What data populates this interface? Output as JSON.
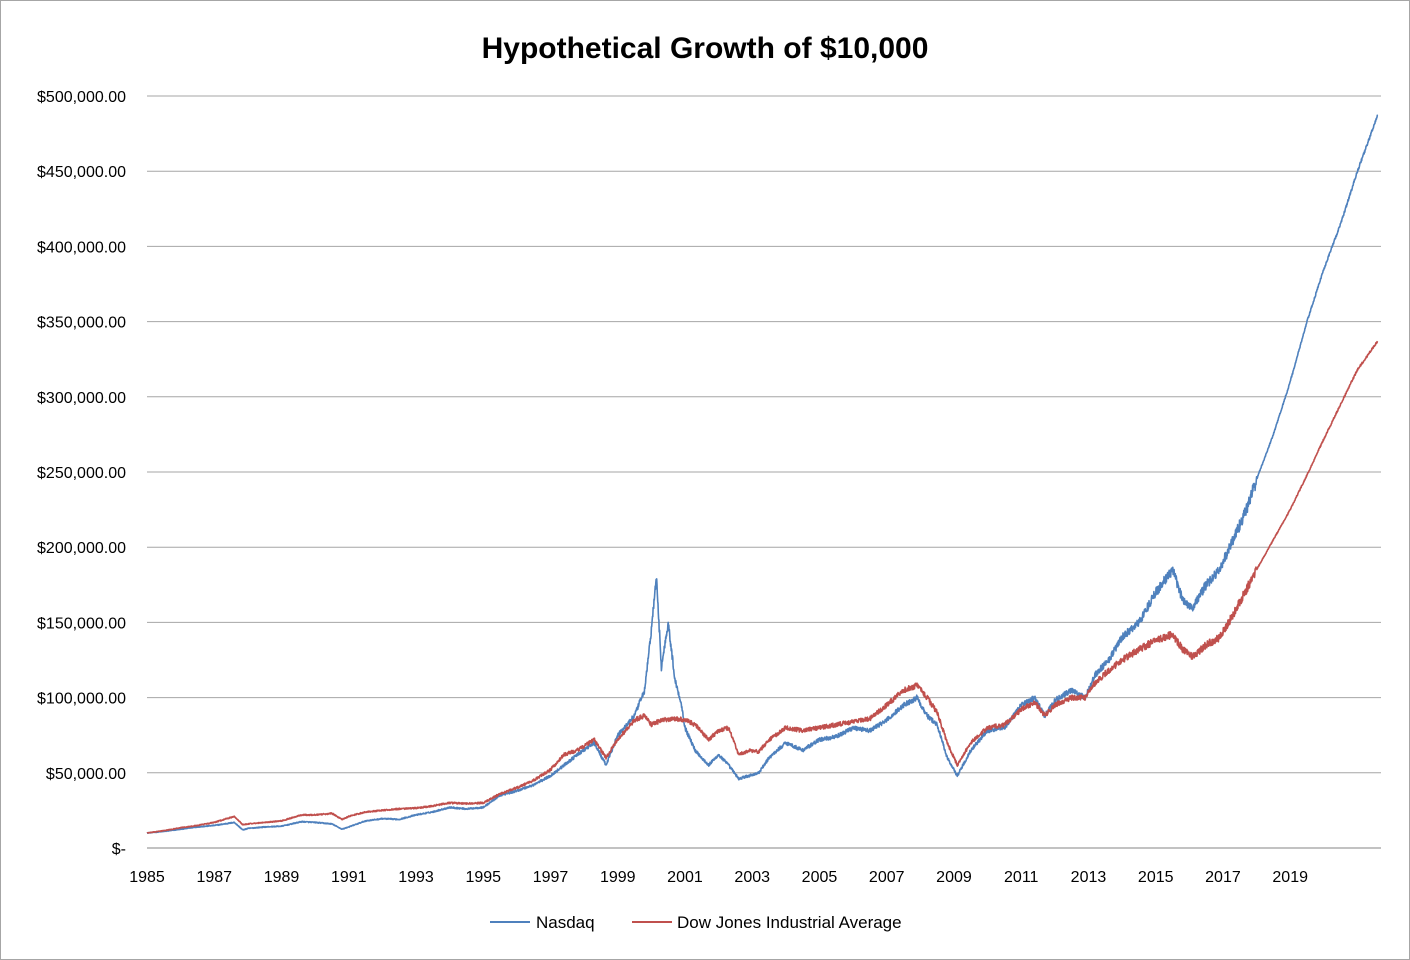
{
  "chart_data": {
    "type": "line",
    "title": "Hypothetical Growth of $10,000",
    "xlabel": "",
    "ylabel": "",
    "xlim": [
      1985.0,
      2021.7
    ],
    "ylim": [
      0,
      500000
    ],
    "grid": "horizontal",
    "legend_position": "bottom",
    "x_tick_labels": [
      "1985",
      "1987",
      "1989",
      "1991",
      "1993",
      "1995",
      "1997",
      "1999",
      "2001",
      "2003",
      "2005",
      "2007",
      "2009",
      "2011",
      "2013",
      "2015",
      "2017",
      "2019"
    ],
    "x_tick_values": [
      1985,
      1987,
      1989,
      1991,
      1993,
      1995,
      1997,
      1999,
      2001,
      2003,
      2005,
      2007,
      2009,
      2011,
      2013,
      2015,
      2017,
      2019
    ],
    "y_tick_labels": [
      "$-",
      "$50,000.00",
      "$100,000.00",
      "$150,000.00",
      "$200,000.00",
      "$250,000.00",
      "$300,000.00",
      "$350,000.00",
      "$400,000.00",
      "$450,000.00",
      "$500,000.00"
    ],
    "y_tick_values": [
      0,
      50000,
      100000,
      150000,
      200000,
      250000,
      300000,
      350000,
      400000,
      450000,
      500000
    ],
    "series": [
      {
        "name": "Nasdaq",
        "color": "#4f81bd",
        "points": [
          [
            1985.0,
            10000
          ],
          [
            1985.5,
            11000
          ],
          [
            1986.0,
            12500
          ],
          [
            1986.5,
            14000
          ],
          [
            1987.0,
            15000
          ],
          [
            1987.6,
            17000
          ],
          [
            1987.85,
            12000
          ],
          [
            1988.0,
            13000
          ],
          [
            1988.5,
            14000
          ],
          [
            1989.0,
            14500
          ],
          [
            1989.6,
            17500
          ],
          [
            1990.0,
            17000
          ],
          [
            1990.5,
            16000
          ],
          [
            1990.8,
            12500
          ],
          [
            1991.0,
            14000
          ],
          [
            1991.5,
            18000
          ],
          [
            1992.0,
            19500
          ],
          [
            1992.5,
            19000
          ],
          [
            1993.0,
            22000
          ],
          [
            1993.5,
            24000
          ],
          [
            1994.0,
            27000
          ],
          [
            1994.5,
            26000
          ],
          [
            1995.0,
            27000
          ],
          [
            1995.5,
            35000
          ],
          [
            1996.0,
            38000
          ],
          [
            1996.5,
            42000
          ],
          [
            1997.0,
            48000
          ],
          [
            1997.4,
            55000
          ],
          [
            1997.8,
            62000
          ],
          [
            1998.3,
            70000
          ],
          [
            1998.65,
            55000
          ],
          [
            1999.0,
            75000
          ],
          [
            1999.5,
            88000
          ],
          [
            1999.8,
            105000
          ],
          [
            2000.0,
            145000
          ],
          [
            2000.15,
            180000
          ],
          [
            2000.3,
            120000
          ],
          [
            2000.5,
            150000
          ],
          [
            2000.7,
            112000
          ],
          [
            2000.9,
            95000
          ],
          [
            2001.0,
            80000
          ],
          [
            2001.3,
            65000
          ],
          [
            2001.7,
            55000
          ],
          [
            2002.0,
            62000
          ],
          [
            2002.3,
            55000
          ],
          [
            2002.6,
            46000
          ],
          [
            2002.9,
            48000
          ],
          [
            2003.2,
            50000
          ],
          [
            2003.5,
            60000
          ],
          [
            2004.0,
            70000
          ],
          [
            2004.5,
            65000
          ],
          [
            2005.0,
            72000
          ],
          [
            2005.5,
            74000
          ],
          [
            2006.0,
            80000
          ],
          [
            2006.5,
            78000
          ],
          [
            2007.0,
            85000
          ],
          [
            2007.5,
            95000
          ],
          [
            2007.9,
            100000
          ],
          [
            2008.2,
            88000
          ],
          [
            2008.5,
            82000
          ],
          [
            2008.8,
            60000
          ],
          [
            2009.1,
            48000
          ],
          [
            2009.5,
            65000
          ],
          [
            2010.0,
            78000
          ],
          [
            2010.5,
            80000
          ],
          [
            2011.0,
            95000
          ],
          [
            2011.4,
            100000
          ],
          [
            2011.7,
            88000
          ],
          [
            2012.0,
            98000
          ],
          [
            2012.5,
            105000
          ],
          [
            2012.9,
            100000
          ],
          [
            2013.2,
            115000
          ],
          [
            2013.6,
            125000
          ],
          [
            2014.0,
            140000
          ],
          [
            2014.5,
            150000
          ],
          [
            2015.0,
            170000
          ],
          [
            2015.5,
            185000
          ],
          [
            2015.8,
            165000
          ],
          [
            2016.1,
            160000
          ],
          [
            2016.5,
            175000
          ],
          [
            2016.9,
            185000
          ],
          [
            2017.3,
            205000
          ],
          [
            2017.7,
            225000
          ],
          [
            2018.0,
            245000
          ],
          [
            2018.5,
            275000
          ],
          [
            2019.0,
            310000
          ],
          [
            2019.5,
            350000
          ],
          [
            2020.0,
            385000
          ],
          [
            2020.5,
            415000
          ],
          [
            2021.0,
            450000
          ],
          [
            2021.6,
            487000
          ]
        ]
      },
      {
        "name": "Dow Jones Industrial Average",
        "color": "#c0504d",
        "points": [
          [
            1985.0,
            10000
          ],
          [
            1985.5,
            11500
          ],
          [
            1986.0,
            13500
          ],
          [
            1986.5,
            15000
          ],
          [
            1987.0,
            17000
          ],
          [
            1987.6,
            21000
          ],
          [
            1987.85,
            15500
          ],
          [
            1988.0,
            16000
          ],
          [
            1988.5,
            17000
          ],
          [
            1989.0,
            18000
          ],
          [
            1989.6,
            22000
          ],
          [
            1990.0,
            22000
          ],
          [
            1990.5,
            23000
          ],
          [
            1990.8,
            19000
          ],
          [
            1991.0,
            21000
          ],
          [
            1991.5,
            24000
          ],
          [
            1992.0,
            25000
          ],
          [
            1992.5,
            26000
          ],
          [
            1993.0,
            26500
          ],
          [
            1993.5,
            28000
          ],
          [
            1994.0,
            30000
          ],
          [
            1994.5,
            29500
          ],
          [
            1995.0,
            30000
          ],
          [
            1995.5,
            36000
          ],
          [
            1996.0,
            40000
          ],
          [
            1996.5,
            45000
          ],
          [
            1997.0,
            52000
          ],
          [
            1997.4,
            62000
          ],
          [
            1997.8,
            65000
          ],
          [
            1998.3,
            72000
          ],
          [
            1998.65,
            60000
          ],
          [
            1999.0,
            72000
          ],
          [
            1999.5,
            85000
          ],
          [
            1999.8,
            88000
          ],
          [
            2000.0,
            82000
          ],
          [
            2000.3,
            85000
          ],
          [
            2000.7,
            86000
          ],
          [
            2001.0,
            85000
          ],
          [
            2001.3,
            82000
          ],
          [
            2001.7,
            72000
          ],
          [
            2002.0,
            78000
          ],
          [
            2002.3,
            80000
          ],
          [
            2002.6,
            62000
          ],
          [
            2002.9,
            65000
          ],
          [
            2003.2,
            64000
          ],
          [
            2003.5,
            72000
          ],
          [
            2004.0,
            80000
          ],
          [
            2004.5,
            78000
          ],
          [
            2005.0,
            80000
          ],
          [
            2005.5,
            82000
          ],
          [
            2006.0,
            84000
          ],
          [
            2006.5,
            86000
          ],
          [
            2007.0,
            95000
          ],
          [
            2007.5,
            105000
          ],
          [
            2007.9,
            108000
          ],
          [
            2008.2,
            100000
          ],
          [
            2008.5,
            90000
          ],
          [
            2008.8,
            70000
          ],
          [
            2009.1,
            55000
          ],
          [
            2009.5,
            70000
          ],
          [
            2010.0,
            80000
          ],
          [
            2010.5,
            82000
          ],
          [
            2011.0,
            92000
          ],
          [
            2011.4,
            97000
          ],
          [
            2011.7,
            88000
          ],
          [
            2012.0,
            95000
          ],
          [
            2012.5,
            100000
          ],
          [
            2012.9,
            100000
          ],
          [
            2013.2,
            110000
          ],
          [
            2013.6,
            118000
          ],
          [
            2014.0,
            125000
          ],
          [
            2014.5,
            132000
          ],
          [
            2015.0,
            138000
          ],
          [
            2015.5,
            142000
          ],
          [
            2015.8,
            132000
          ],
          [
            2016.1,
            127000
          ],
          [
            2016.5,
            135000
          ],
          [
            2016.9,
            140000
          ],
          [
            2017.3,
            155000
          ],
          [
            2017.7,
            172000
          ],
          [
            2018.0,
            185000
          ],
          [
            2018.5,
            205000
          ],
          [
            2019.0,
            225000
          ],
          [
            2019.5,
            248000
          ],
          [
            2020.0,
            272000
          ],
          [
            2020.5,
            295000
          ],
          [
            2021.0,
            318000
          ],
          [
            2021.6,
            337000
          ]
        ]
      }
    ]
  }
}
